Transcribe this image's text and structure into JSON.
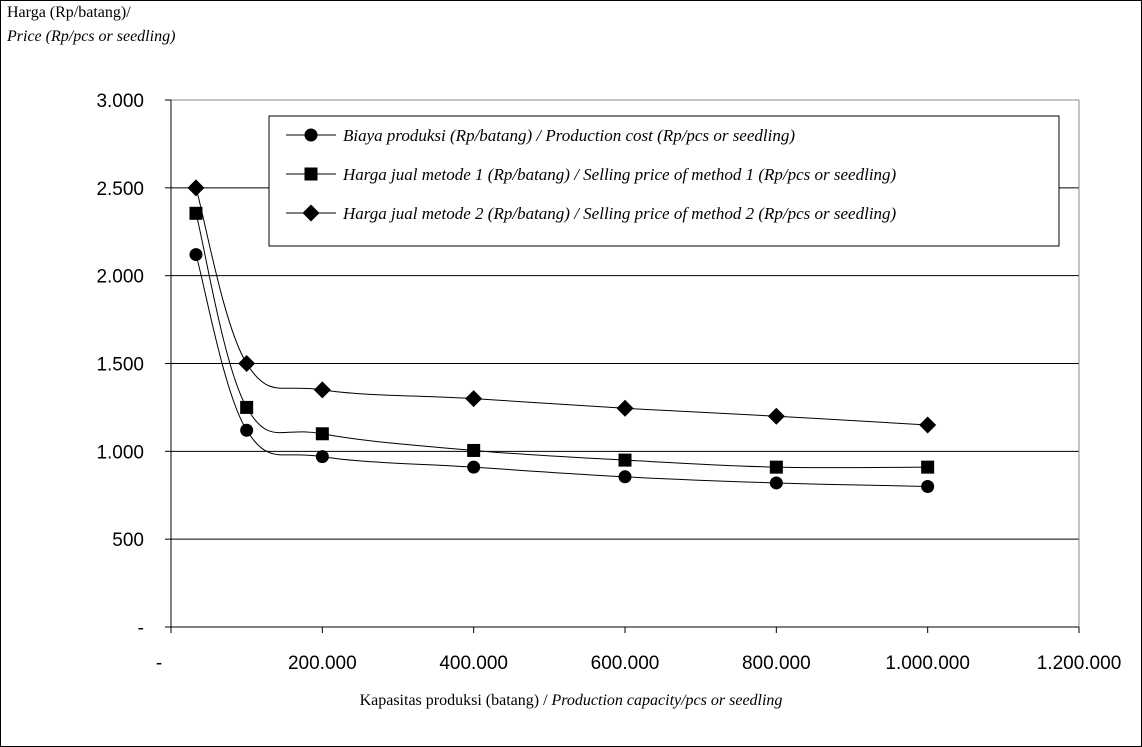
{
  "chart_data": {
    "type": "line",
    "ylabel_line1": "Harga (Rp/batang)/",
    "ylabel_line2": "Price (Rp/pcs or seedling)",
    "xlabel_id": "Kapasitas produksi (batang) / ",
    "xlabel_en": "Production capacity/pcs or seedling",
    "xlim": [
      0,
      1200000
    ],
    "ylim": [
      0,
      3000
    ],
    "x_ticks": [
      0,
      200000,
      400000,
      600000,
      800000,
      1000000,
      1200000
    ],
    "x_tick_labels": [
      "-",
      "200.000",
      "400.000",
      "600.000",
      "800.000",
      "1.000.000",
      "1.200.000"
    ],
    "y_ticks": [
      0,
      500,
      1000,
      1500,
      2000,
      2500,
      3000
    ],
    "y_tick_labels": [
      "-",
      "500",
      "1.000",
      "1.500",
      "2.000",
      "2.500",
      "3.000"
    ],
    "grid": "horizontal",
    "legend_position": "top-right",
    "x": [
      33000,
      100000,
      200000,
      400000,
      600000,
      800000,
      1000000
    ],
    "series": [
      {
        "name": "Biaya produksi (Rp/batang) / Production cost (Rp/pcs or seedling)",
        "marker": "circle",
        "values": [
          2120,
          1120,
          970,
          910,
          855,
          820,
          800
        ]
      },
      {
        "name": "Harga jual  metode 1 (Rp/batang) / Selling price of method 1 (Rp/pcs or seedling)",
        "marker": "square",
        "values": [
          2355,
          1250,
          1100,
          1005,
          950,
          910,
          910
        ]
      },
      {
        "name": "Harga jual metode 2 (Rp/batang) / Selling price of method 2 (Rp/pcs or seedling)",
        "marker": "diamond",
        "values": [
          2500,
          1500,
          1350,
          1300,
          1245,
          1200,
          1150
        ]
      }
    ],
    "colors": {
      "line": "#000000",
      "grid": "#000000",
      "background": "#ffffff"
    }
  }
}
